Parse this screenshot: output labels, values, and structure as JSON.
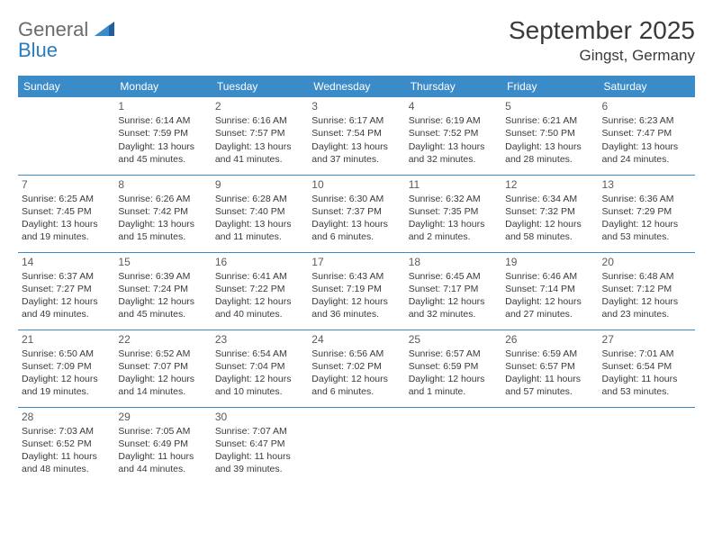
{
  "logo": {
    "general": "General",
    "blue": "Blue"
  },
  "title": "September 2025",
  "location": "Gingst, Germany",
  "header_color": "#3b8bc9",
  "border_color": "#3b8bc9",
  "text_color": "#3a3a3a",
  "background_color": "#ffffff",
  "day_headers": [
    "Sunday",
    "Monday",
    "Tuesday",
    "Wednesday",
    "Thursday",
    "Friday",
    "Saturday"
  ],
  "start_weekday": 1,
  "days": [
    {
      "n": "1",
      "sunrise": "6:14 AM",
      "sunset": "7:59 PM",
      "daylight": "13 hours and 45 minutes."
    },
    {
      "n": "2",
      "sunrise": "6:16 AM",
      "sunset": "7:57 PM",
      "daylight": "13 hours and 41 minutes."
    },
    {
      "n": "3",
      "sunrise": "6:17 AM",
      "sunset": "7:54 PM",
      "daylight": "13 hours and 37 minutes."
    },
    {
      "n": "4",
      "sunrise": "6:19 AM",
      "sunset": "7:52 PM",
      "daylight": "13 hours and 32 minutes."
    },
    {
      "n": "5",
      "sunrise": "6:21 AM",
      "sunset": "7:50 PM",
      "daylight": "13 hours and 28 minutes."
    },
    {
      "n": "6",
      "sunrise": "6:23 AM",
      "sunset": "7:47 PM",
      "daylight": "13 hours and 24 minutes."
    },
    {
      "n": "7",
      "sunrise": "6:25 AM",
      "sunset": "7:45 PM",
      "daylight": "13 hours and 19 minutes."
    },
    {
      "n": "8",
      "sunrise": "6:26 AM",
      "sunset": "7:42 PM",
      "daylight": "13 hours and 15 minutes."
    },
    {
      "n": "9",
      "sunrise": "6:28 AM",
      "sunset": "7:40 PM",
      "daylight": "13 hours and 11 minutes."
    },
    {
      "n": "10",
      "sunrise": "6:30 AM",
      "sunset": "7:37 PM",
      "daylight": "13 hours and 6 minutes."
    },
    {
      "n": "11",
      "sunrise": "6:32 AM",
      "sunset": "7:35 PM",
      "daylight": "13 hours and 2 minutes."
    },
    {
      "n": "12",
      "sunrise": "6:34 AM",
      "sunset": "7:32 PM",
      "daylight": "12 hours and 58 minutes."
    },
    {
      "n": "13",
      "sunrise": "6:36 AM",
      "sunset": "7:29 PM",
      "daylight": "12 hours and 53 minutes."
    },
    {
      "n": "14",
      "sunrise": "6:37 AM",
      "sunset": "7:27 PM",
      "daylight": "12 hours and 49 minutes."
    },
    {
      "n": "15",
      "sunrise": "6:39 AM",
      "sunset": "7:24 PM",
      "daylight": "12 hours and 45 minutes."
    },
    {
      "n": "16",
      "sunrise": "6:41 AM",
      "sunset": "7:22 PM",
      "daylight": "12 hours and 40 minutes."
    },
    {
      "n": "17",
      "sunrise": "6:43 AM",
      "sunset": "7:19 PM",
      "daylight": "12 hours and 36 minutes."
    },
    {
      "n": "18",
      "sunrise": "6:45 AM",
      "sunset": "7:17 PM",
      "daylight": "12 hours and 32 minutes."
    },
    {
      "n": "19",
      "sunrise": "6:46 AM",
      "sunset": "7:14 PM",
      "daylight": "12 hours and 27 minutes."
    },
    {
      "n": "20",
      "sunrise": "6:48 AM",
      "sunset": "7:12 PM",
      "daylight": "12 hours and 23 minutes."
    },
    {
      "n": "21",
      "sunrise": "6:50 AM",
      "sunset": "7:09 PM",
      "daylight": "12 hours and 19 minutes."
    },
    {
      "n": "22",
      "sunrise": "6:52 AM",
      "sunset": "7:07 PM",
      "daylight": "12 hours and 14 minutes."
    },
    {
      "n": "23",
      "sunrise": "6:54 AM",
      "sunset": "7:04 PM",
      "daylight": "12 hours and 10 minutes."
    },
    {
      "n": "24",
      "sunrise": "6:56 AM",
      "sunset": "7:02 PM",
      "daylight": "12 hours and 6 minutes."
    },
    {
      "n": "25",
      "sunrise": "6:57 AM",
      "sunset": "6:59 PM",
      "daylight": "12 hours and 1 minute."
    },
    {
      "n": "26",
      "sunrise": "6:59 AM",
      "sunset": "6:57 PM",
      "daylight": "11 hours and 57 minutes."
    },
    {
      "n": "27",
      "sunrise": "7:01 AM",
      "sunset": "6:54 PM",
      "daylight": "11 hours and 53 minutes."
    },
    {
      "n": "28",
      "sunrise": "7:03 AM",
      "sunset": "6:52 PM",
      "daylight": "11 hours and 48 minutes."
    },
    {
      "n": "29",
      "sunrise": "7:05 AM",
      "sunset": "6:49 PM",
      "daylight": "11 hours and 44 minutes."
    },
    {
      "n": "30",
      "sunrise": "7:07 AM",
      "sunset": "6:47 PM",
      "daylight": "11 hours and 39 minutes."
    }
  ],
  "labels": {
    "sunrise": "Sunrise:",
    "sunset": "Sunset:",
    "daylight": "Daylight:"
  }
}
